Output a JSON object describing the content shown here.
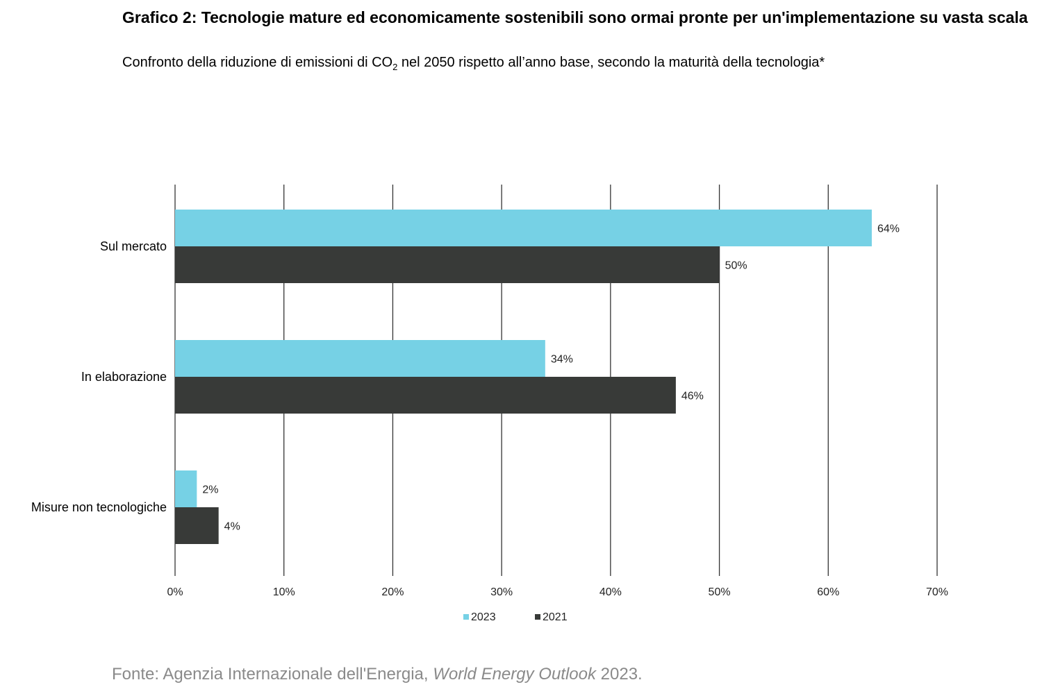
{
  "chart_data": {
    "type": "bar",
    "orientation": "horizontal",
    "title": "Grafico 2: Tecnologie mature ed economicamente sostenibili sono ormai pronte per un'implementazione su vasta scala",
    "subtitle_pre": "Confronto della riduzione di emissioni di CO",
    "subtitle_sub": "2",
    "subtitle_post": " nel 2050 rispetto all’anno base, secondo la maturità della tecnologia*",
    "categories": [
      "Sul mercato",
      "In elaborazione",
      "Misure non tecnologiche"
    ],
    "series": [
      {
        "name": "2023",
        "values": [
          64,
          34,
          2
        ],
        "color": "#76d1e5"
      },
      {
        "name": "2021",
        "values": [
          50,
          46,
          4
        ],
        "color": "#383a38"
      }
    ],
    "xlim": [
      0,
      70
    ],
    "xticks": [
      "0%",
      "10%",
      "20%",
      "30%",
      "40%",
      "50%",
      "60%",
      "70%"
    ],
    "value_suffix": "%",
    "grid": "vertical",
    "legend_placement": "bottom"
  },
  "source": {
    "prefix": "Fonte: Agenzia Internazionale dell'Energia, ",
    "italic": "World Energy Outlook",
    "suffix": " 2023."
  }
}
